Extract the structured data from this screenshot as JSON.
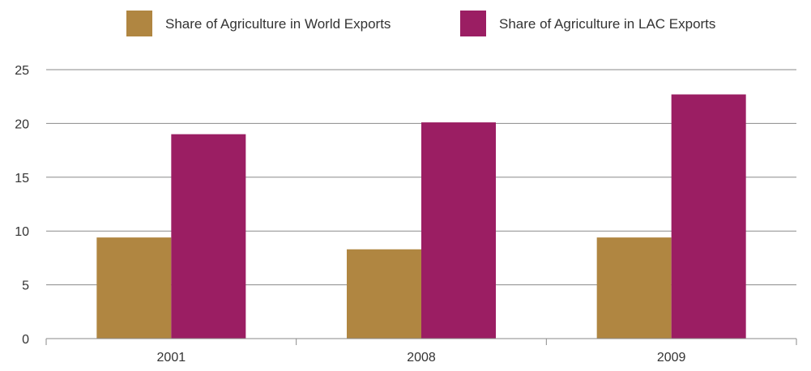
{
  "chart_data": {
    "type": "bar",
    "title": "",
    "xlabel": "",
    "ylabel": "",
    "categories": [
      "2001",
      "2008",
      "2009"
    ],
    "series": [
      {
        "name": "Share of Agriculture in World Exports",
        "values": [
          9.4,
          8.3,
          9.4
        ],
        "color": "#b08641"
      },
      {
        "name": "Share of Agriculture in LAC Exports",
        "values": [
          19.0,
          20.1,
          22.7
        ],
        "color": "#9b1e63"
      }
    ],
    "ylim": [
      0,
      25
    ],
    "yticks": [
      0,
      5,
      10,
      15,
      20,
      25
    ],
    "grid": true,
    "legend": "top-center"
  }
}
